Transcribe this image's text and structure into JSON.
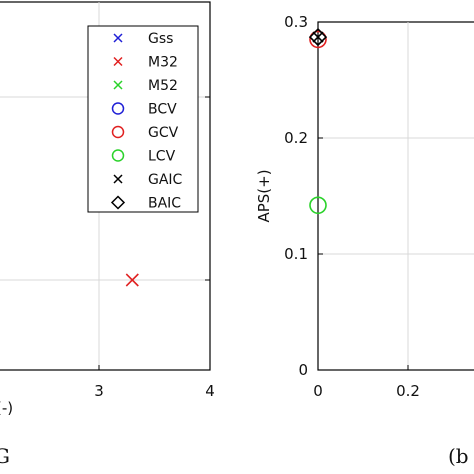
{
  "chart_data": [
    {
      "type": "scatter",
      "panel": "left",
      "xlabel": "(-)",
      "ylabel": "",
      "xlim": [
        0,
        4
      ],
      "x_ticks": [
        "3",
        "4"
      ],
      "grid": true,
      "legend_position": "top-right",
      "series": [
        {
          "name": "Gss",
          "marker": "x",
          "color": "#1f1fd6",
          "points": []
        },
        {
          "name": "M32",
          "marker": "x",
          "color": "#e02020",
          "points": [
            {
              "x": 3.3,
              "y": 0
            }
          ]
        },
        {
          "name": "M52",
          "marker": "x",
          "color": "#2ad22a",
          "points": []
        },
        {
          "name": "BCV",
          "marker": "circle",
          "color": "#1f1fd6",
          "points": []
        },
        {
          "name": "GCV",
          "marker": "circle",
          "color": "#e02020",
          "points": []
        },
        {
          "name": "LCV",
          "marker": "circle",
          "color": "#2ad22a",
          "points": []
        },
        {
          "name": "GAIC",
          "marker": "x",
          "color": "#000000",
          "points": []
        },
        {
          "name": "BAIC",
          "marker": "diamond",
          "color": "#000000",
          "points": []
        }
      ],
      "caption_fragment": "G"
    },
    {
      "type": "scatter",
      "panel": "right",
      "xlabel": "",
      "ylabel": "APS(+)",
      "xlim": [
        0,
        0.5
      ],
      "ylim": [
        0,
        0.3
      ],
      "x_ticks": [
        "0",
        "0.2"
      ],
      "y_ticks": [
        "0",
        "0.1",
        "0.2",
        "0.3"
      ],
      "grid": true,
      "series": [
        {
          "name": "GCV",
          "marker": "circle",
          "color": "#e02020",
          "points": [
            {
              "x": 0,
              "y": 0.285
            }
          ]
        },
        {
          "name": "GAIC",
          "marker": "x",
          "color": "#000000",
          "points": [
            {
              "x": 0,
              "y": 0.287
            }
          ]
        },
        {
          "name": "BAIC",
          "marker": "diamond",
          "color": "#000000",
          "points": [
            {
              "x": 0,
              "y": 0.287
            }
          ]
        },
        {
          "name": "LCV",
          "marker": "circle",
          "color": "#2ad22a",
          "points": [
            {
              "x": 0,
              "y": 0.142
            }
          ]
        }
      ],
      "caption_fragment": "(b"
    }
  ]
}
